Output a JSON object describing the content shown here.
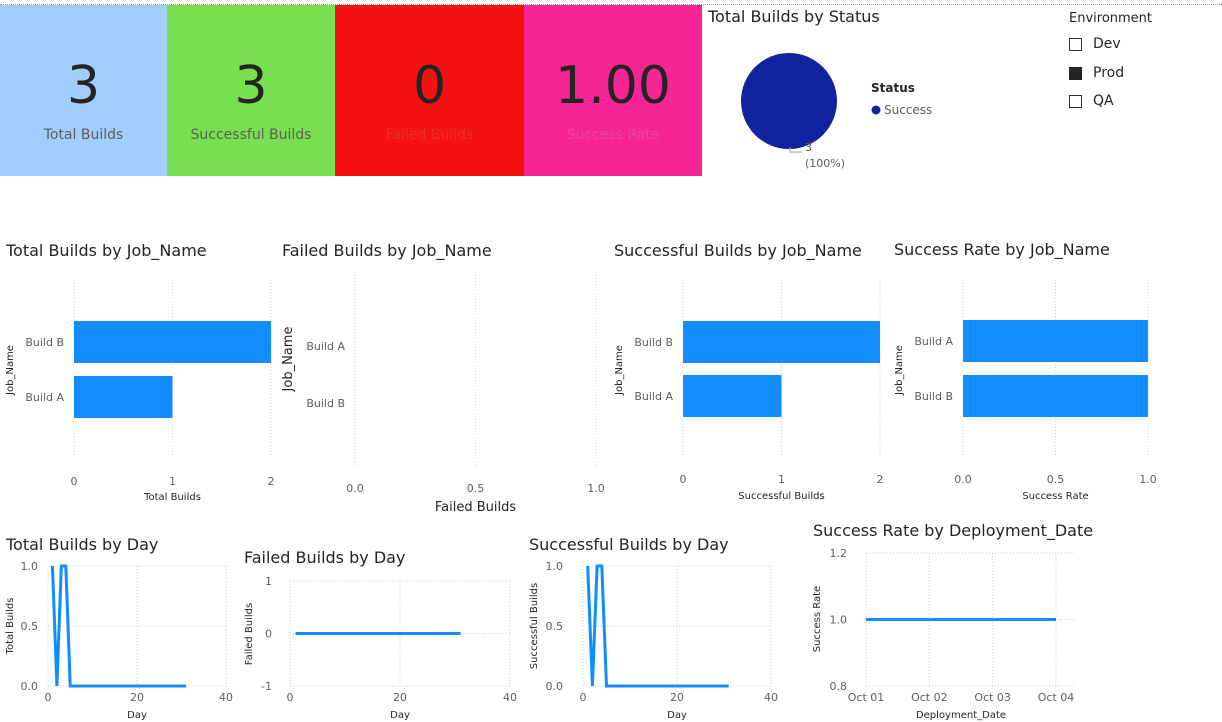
{
  "kpis": [
    {
      "value": "3",
      "label": "Total Builds",
      "bg": "#a0cdfb",
      "label_color": "#605e5c"
    },
    {
      "value": "3",
      "label": "Successful Builds",
      "bg": "#78e050",
      "label_color": "#605e5c"
    },
    {
      "value": "0",
      "label": "Failed Builds",
      "bg": "#f51212",
      "label_color": "#ea2c2c"
    },
    {
      "value": "1.00",
      "label": "Success Rate",
      "bg": "#f52595",
      "label_color": "#e8469c"
    }
  ],
  "pie": {
    "title": "Total Builds by Status",
    "legend_title": "Status",
    "legend_item": "Success",
    "slice_color": "#12239e",
    "data_label_value": "3",
    "data_label_pct": "(100%)"
  },
  "slicer": {
    "title": "Environment",
    "items": [
      {
        "label": "Dev",
        "checked": false
      },
      {
        "label": "Prod",
        "checked": true
      },
      {
        "label": "QA",
        "checked": false
      }
    ]
  },
  "bar_color": "#118dff",
  "chart_data": [
    {
      "id": "c1",
      "type": "bar",
      "orientation": "horizontal",
      "title": "Total Builds by Job_Name",
      "categories": [
        "Build B",
        "Build A"
      ],
      "values": [
        2,
        1
      ],
      "xlim": [
        0,
        2
      ],
      "ticks": [
        "0",
        "1",
        "2"
      ],
      "xlabel": "Total Builds",
      "ylabel": "Job_Name"
    },
    {
      "id": "c2",
      "type": "bar",
      "orientation": "horizontal",
      "title": "Failed Builds by Job_Name",
      "categories": [
        "Build A",
        "Build B"
      ],
      "values": [
        0,
        0
      ],
      "xlim": [
        0,
        1
      ],
      "ticks": [
        "0.0",
        "0.5",
        "1.0"
      ],
      "xlabel": "Failed Builds",
      "ylabel": "Job_Name"
    },
    {
      "id": "c3",
      "type": "bar",
      "orientation": "horizontal",
      "title": "Successful Builds by Job_Name",
      "categories": [
        "Build B",
        "Build A"
      ],
      "values": [
        2,
        1
      ],
      "xlim": [
        0,
        2
      ],
      "ticks": [
        "0",
        "1",
        "2"
      ],
      "xlabel": "Successful Builds",
      "ylabel": "Job_Name"
    },
    {
      "id": "c4",
      "type": "bar",
      "orientation": "horizontal",
      "title": "Success Rate by Job_Name",
      "categories": [
        "Build A",
        "Build B"
      ],
      "values": [
        1,
        1
      ],
      "xlim": [
        0,
        1
      ],
      "ticks": [
        "0.0",
        "0.5",
        "1.0"
      ],
      "xlabel": "Success Rate",
      "ylabel": "Job_Name"
    },
    {
      "id": "c5",
      "type": "line",
      "title": "Total Builds by Day",
      "x": [
        1,
        2,
        3,
        4,
        5,
        31
      ],
      "y": [
        1,
        0,
        1,
        1,
        0,
        0
      ],
      "xlim": [
        0,
        40
      ],
      "ylim": [
        0,
        1
      ],
      "xticks": [
        "0",
        "20",
        "40"
      ],
      "yticks": [
        "0.0",
        "0.5",
        "1.0"
      ],
      "xlabel": "Day",
      "ylabel": "Total Builds"
    },
    {
      "id": "c6",
      "type": "line",
      "title": "Failed Builds by Day",
      "x": [
        1,
        31
      ],
      "y": [
        0,
        0
      ],
      "xlim": [
        0,
        40
      ],
      "ylim": [
        -1,
        1
      ],
      "xticks": [
        "0",
        "20",
        "40"
      ],
      "yticks": [
        "-1",
        "0",
        "1"
      ],
      "xlabel": "Day",
      "ylabel": "Failed Builds"
    },
    {
      "id": "c7",
      "type": "line",
      "title": "Successful Builds by Day",
      "x": [
        1,
        2,
        3,
        4,
        5,
        31
      ],
      "y": [
        1,
        0,
        1,
        1,
        0,
        0
      ],
      "xlim": [
        0,
        40
      ],
      "ylim": [
        0,
        1
      ],
      "xticks": [
        "0",
        "20",
        "40"
      ],
      "yticks": [
        "0.0",
        "0.5",
        "1.0"
      ],
      "xlabel": "Day",
      "ylabel": "Successful Builds"
    },
    {
      "id": "c8",
      "type": "line",
      "title": "Success Rate by Deployment_Date",
      "x": [
        "Oct 01",
        "Oct 04"
      ],
      "y": [
        1.0,
        1.0
      ],
      "ylim": [
        0.8,
        1.2
      ],
      "xticks": [
        "Oct 01",
        "Oct 02",
        "Oct 03",
        "Oct 04"
      ],
      "yticks": [
        "0.8",
        "1.0",
        "1.2"
      ],
      "xlabel": "Deployment_Date",
      "ylabel": "Success Rate"
    }
  ]
}
